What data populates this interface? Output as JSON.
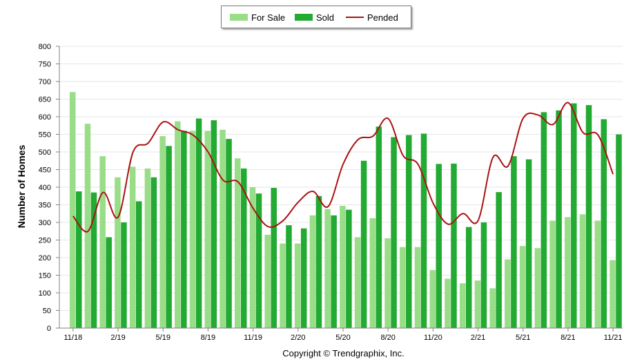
{
  "chart_data": {
    "type": "bar",
    "ylabel": "Number of Homes",
    "ylim": [
      0,
      800
    ],
    "yticks": [
      0,
      50,
      100,
      150,
      200,
      250,
      300,
      350,
      400,
      450,
      500,
      550,
      600,
      650,
      700,
      750,
      800
    ],
    "grid": true,
    "legend_position": "top-center",
    "x_tick_labels": [
      {
        "index": 0,
        "label": "11/18"
      },
      {
        "index": 3,
        "label": "2/19"
      },
      {
        "index": 6,
        "label": "5/19"
      },
      {
        "index": 9,
        "label": "8/19"
      },
      {
        "index": 12,
        "label": "11/19"
      },
      {
        "index": 15,
        "label": "2/20"
      },
      {
        "index": 18,
        "label": "5/20"
      },
      {
        "index": 21,
        "label": "8/20"
      },
      {
        "index": 24,
        "label": "11/20"
      },
      {
        "index": 27,
        "label": "2/21"
      },
      {
        "index": 30,
        "label": "5/21"
      },
      {
        "index": 33,
        "label": "8/21"
      },
      {
        "index": 36,
        "label": "11/21"
      }
    ],
    "categories": [
      "11/18",
      "12/18",
      "1/19",
      "2/19",
      "3/19",
      "4/19",
      "5/19",
      "6/19",
      "7/19",
      "8/19",
      "9/19",
      "10/19",
      "11/19",
      "12/19",
      "1/20",
      "2/20",
      "3/20",
      "4/20",
      "5/20",
      "6/20",
      "7/20",
      "8/20",
      "9/20",
      "10/20",
      "11/20",
      "12/20",
      "1/21",
      "2/21",
      "3/21",
      "4/21",
      "5/21",
      "6/21",
      "7/21",
      "8/21",
      "9/21",
      "10/21",
      "11/21"
    ],
    "series": [
      {
        "name": "For Sale",
        "kind": "bar",
        "color": "#99dd88",
        "values": [
          670,
          580,
          488,
          428,
          458,
          453,
          545,
          587,
          560,
          560,
          563,
          482,
          400,
          265,
          240,
          240,
          320,
          338,
          347,
          258,
          312,
          255,
          230,
          230,
          165,
          140,
          127,
          135,
          113,
          195,
          233,
          227,
          305,
          315,
          323,
          305,
          193
        ]
      },
      {
        "name": "Sold",
        "kind": "bar",
        "color": "#22aa33",
        "values": [
          388,
          385,
          258,
          300,
          360,
          428,
          517,
          560,
          595,
          590,
          537,
          453,
          382,
          398,
          292,
          283,
          375,
          320,
          336,
          475,
          572,
          542,
          548,
          552,
          466,
          467,
          287,
          300,
          386,
          488,
          479,
          613,
          618,
          638,
          633,
          593,
          550
        ]
      },
      {
        "name": "Pended",
        "kind": "line",
        "color": "#aa1111",
        "values": [
          318,
          275,
          385,
          315,
          500,
          525,
          585,
          563,
          548,
          500,
          420,
          415,
          340,
          288,
          305,
          357,
          388,
          345,
          465,
          535,
          545,
          595,
          490,
          465,
          355,
          295,
          325,
          305,
          485,
          460,
          595,
          605,
          578,
          640,
          555,
          548,
          437
        ]
      }
    ]
  },
  "footer": "Copyright © Trendgraphix, Inc."
}
